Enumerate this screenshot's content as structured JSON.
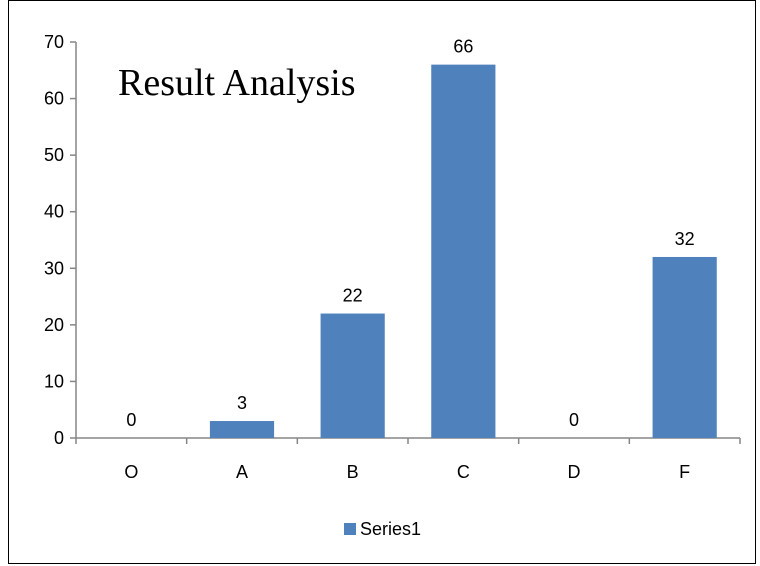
{
  "chart_data": {
    "type": "bar",
    "title": "Result Analysis",
    "categories": [
      "O",
      "A",
      "B",
      "C",
      "D",
      "F"
    ],
    "series": [
      {
        "name": "Series1",
        "values": [
          0,
          3,
          22,
          66,
          0,
          32
        ],
        "color": "#4f81bd"
      }
    ],
    "ylim": [
      0,
      70
    ],
    "yticks": [
      0,
      10,
      20,
      30,
      40,
      50,
      60,
      70
    ],
    "grid": false,
    "legend": "bottom",
    "data_labels": true
  }
}
